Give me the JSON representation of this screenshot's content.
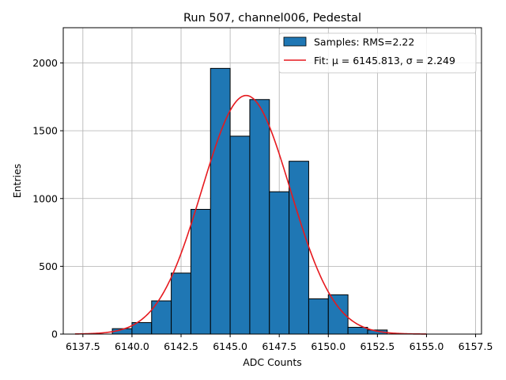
{
  "chart_data": {
    "type": "bar",
    "title": "Run 507, channel006, Pedestal",
    "xlabel": "ADC Counts",
    "ylabel": "Entries",
    "xlim": [
      6136.5,
      6157.8
    ],
    "ylim": [
      0,
      2260
    ],
    "xticks": [
      6137.5,
      6140.0,
      6142.5,
      6145.0,
      6147.5,
      6150.0,
      6152.5,
      6155.0,
      6157.5
    ],
    "xtick_labels": [
      "6137.5",
      "6140.0",
      "6142.5",
      "6145.0",
      "6147.5",
      "6150.0",
      "6152.5",
      "6155.0",
      "6157.5"
    ],
    "yticks": [
      0,
      500,
      1000,
      1500,
      2000
    ],
    "ytick_labels": [
      "0",
      "500",
      "1000",
      "1500",
      "2000"
    ],
    "grid": true,
    "legend_position": "top-right",
    "bin_width": 1,
    "bins": [
      {
        "x0": 6139,
        "x1": 6140,
        "count": 40
      },
      {
        "x0": 6140,
        "x1": 6141,
        "count": 85
      },
      {
        "x0": 6141,
        "x1": 6142,
        "count": 245
      },
      {
        "x0": 6142,
        "x1": 6143,
        "count": 450
      },
      {
        "x0": 6143,
        "x1": 6144,
        "count": 920
      },
      {
        "x0": 6144,
        "x1": 6145,
        "count": 1960
      },
      {
        "x0": 6145,
        "x1": 6146,
        "count": 1460
      },
      {
        "x0": 6146,
        "x1": 6147,
        "count": 1730
      },
      {
        "x0": 6147,
        "x1": 6148,
        "count": 1050
      },
      {
        "x0": 6148,
        "x1": 6149,
        "count": 1275
      },
      {
        "x0": 6149,
        "x1": 6150,
        "count": 260
      },
      {
        "x0": 6150,
        "x1": 6151,
        "count": 290
      },
      {
        "x0": 6151,
        "x1": 6152,
        "count": 50
      },
      {
        "x0": 6152,
        "x1": 6153,
        "count": 30
      }
    ],
    "fit": {
      "mu": 6145.813,
      "sigma": 2.249,
      "amplitude": 1760,
      "x_range": [
        6137.1,
        6155.0
      ]
    },
    "series": [
      {
        "name": "Samples: RMS=2.22",
        "color": "#1f77b4",
        "kind": "histogram"
      },
      {
        "name": "Fit: μ = 6145.813, σ = 2.249",
        "color": "#e6191e",
        "kind": "line"
      }
    ]
  }
}
